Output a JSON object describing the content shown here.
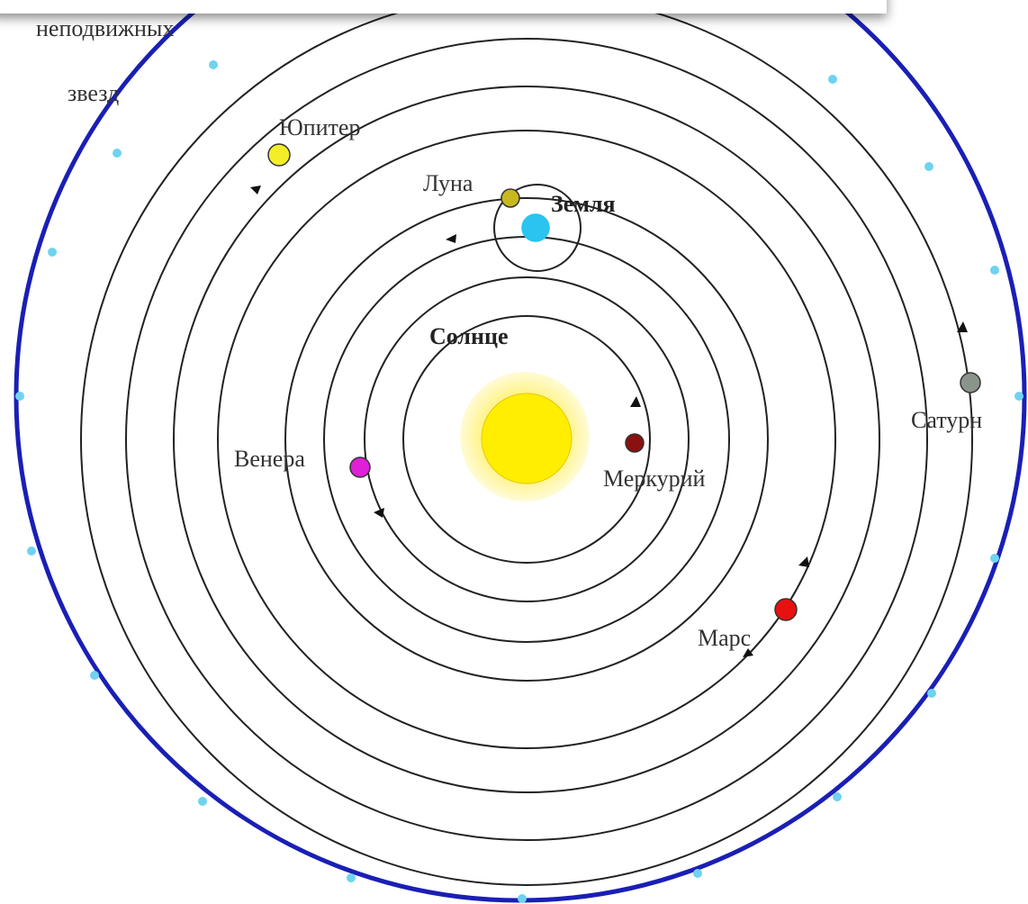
{
  "stars_label": {
    "line1": "неподвижных",
    "line2": "звезд"
  },
  "bodies": {
    "jupiter": "Юпитер",
    "moon": "Луна",
    "earth": "Земля",
    "sun": "Солнце",
    "venus": "Венера",
    "mercury": "Меркурий",
    "saturn": "Сатурн",
    "mars": "Марс"
  }
}
